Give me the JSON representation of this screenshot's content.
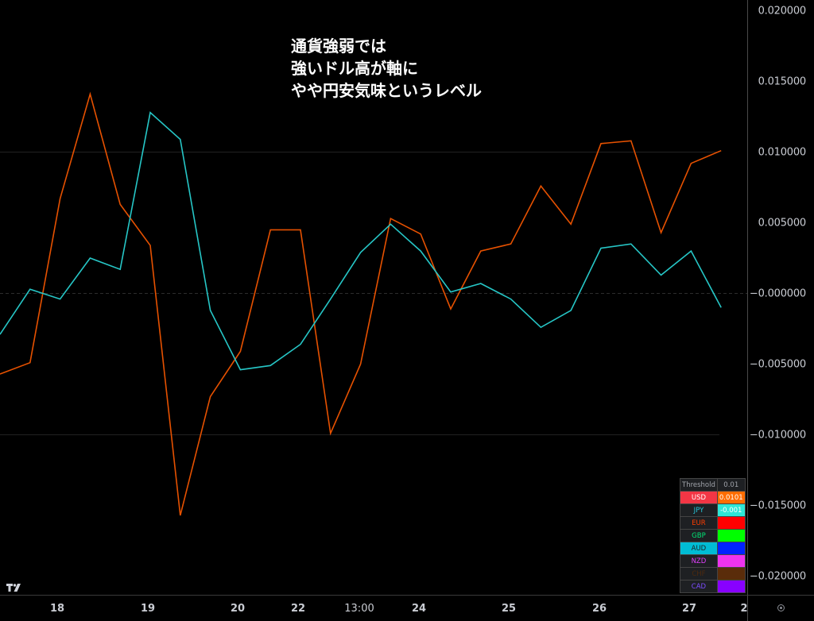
{
  "annotation": {
    "lines": [
      "通貨強弱では",
      "強いドル高が軸に",
      "やや円安気味というレベル"
    ]
  },
  "price_axis": {
    "labels": [
      "0.020000",
      "0.015000",
      "0.010000",
      "0.005000",
      "−0.000000",
      "−0.005000",
      "−0.010000",
      "−0.015000",
      "−0.020000"
    ],
    "values": [
      0.02,
      0.015,
      0.01,
      0.005,
      0,
      -0.005,
      -0.01,
      -0.015,
      -0.02
    ]
  },
  "time_axis": {
    "labels": [
      "18",
      "19",
      "20",
      "22",
      "13:00",
      "24",
      "25",
      "26",
      "27",
      "2"
    ]
  },
  "legend": {
    "threshold_label": "Threshold",
    "threshold_value": "0.01",
    "rows": [
      {
        "name": "USD",
        "name_color": "#ffffff",
        "name_bg": "#f23645",
        "value": "0.0101",
        "value_bg": "#ff6d00",
        "value_color": "#ffffff"
      },
      {
        "name": "JPY",
        "name_color": "#26c6da",
        "name_bg": "#1e2023",
        "value": "-0.001",
        "value_bg": "#2ee6d6",
        "value_color": "#ffffff"
      },
      {
        "name": "EUR",
        "name_color": "#ff3d00",
        "name_bg": "#1e2023",
        "value": "",
        "value_bg": "#ff0000",
        "value_color": "#ffffff"
      },
      {
        "name": "GBP",
        "name_color": "#00e676",
        "name_bg": "#1e2023",
        "value": "",
        "value_bg": "#00ff00",
        "value_color": "#ffffff"
      },
      {
        "name": "AUD",
        "name_color": "#1e2023",
        "name_bg": "#00bcd4",
        "value": "",
        "value_bg": "#0022ff",
        "value_color": "#ffffff"
      },
      {
        "name": "NZD",
        "name_color": "#e040fb",
        "name_bg": "#1e2023",
        "value": "",
        "value_bg": "#ee33ee",
        "value_color": "#ffffff"
      },
      {
        "name": "CHF",
        "name_color": "#4e2a0e",
        "name_bg": "#1e2023",
        "value": "",
        "value_bg": "#5a2c0a",
        "value_color": "#ffffff"
      },
      {
        "name": "CAD",
        "name_color": "#7c4dff",
        "name_bg": "#1e2023",
        "value": "",
        "value_bg": "#8800ff",
        "value_color": "#ffffff"
      }
    ]
  },
  "colors": {
    "background": "#000000",
    "usd_line": "#e65100",
    "jpy_line": "#26c6c6",
    "grid": "#222222"
  },
  "chart_data": {
    "type": "line",
    "title": "",
    "xlabel": "",
    "ylabel": "",
    "ylim": [
      -0.0215,
      0.0207
    ],
    "grid": "horizontal lines at 0.01, 0 (dashed), -0.01",
    "legend_position": "bottom-right table",
    "annotation": "通貨強弱では 強いドル高が軸に やや円安気味というレベル",
    "x_tick_labels": [
      "18",
      "19",
      "20",
      "22",
      "13:00",
      "24",
      "25",
      "26",
      "27",
      "2"
    ],
    "x": [
      0,
      1,
      2,
      3,
      4,
      5,
      6,
      7,
      8,
      9,
      10,
      11,
      12,
      13,
      14,
      15,
      16,
      17,
      18,
      19,
      20,
      21,
      22,
      23,
      24
    ],
    "series": [
      {
        "name": "USD",
        "color": "#e65100",
        "values": [
          -0.0057,
          -0.0049,
          0.0067,
          0.0141,
          0.0063,
          0.0034,
          -0.0157,
          -0.0073,
          -0.0041,
          0.0045,
          0.0045,
          -0.0099,
          -0.005,
          0.0053,
          0.0042,
          -0.0011,
          0.003,
          0.0035,
          0.0076,
          0.0049,
          0.0106,
          0.0108,
          0.0043,
          0.0092,
          0.0101
        ]
      },
      {
        "name": "JPY",
        "color": "#26c6c6",
        "values": [
          -0.0029,
          0.0003,
          -0.0004,
          0.0025,
          0.0017,
          0.0128,
          0.0109,
          -0.0012,
          -0.0054,
          -0.0051,
          -0.0036,
          -0.0004,
          0.0029,
          0.0049,
          0.003,
          0.0001,
          0.0007,
          -0.0004,
          -0.0024,
          -0.0012,
          0.0032,
          0.0035,
          0.0013,
          0.003,
          -0.001
        ]
      }
    ]
  }
}
